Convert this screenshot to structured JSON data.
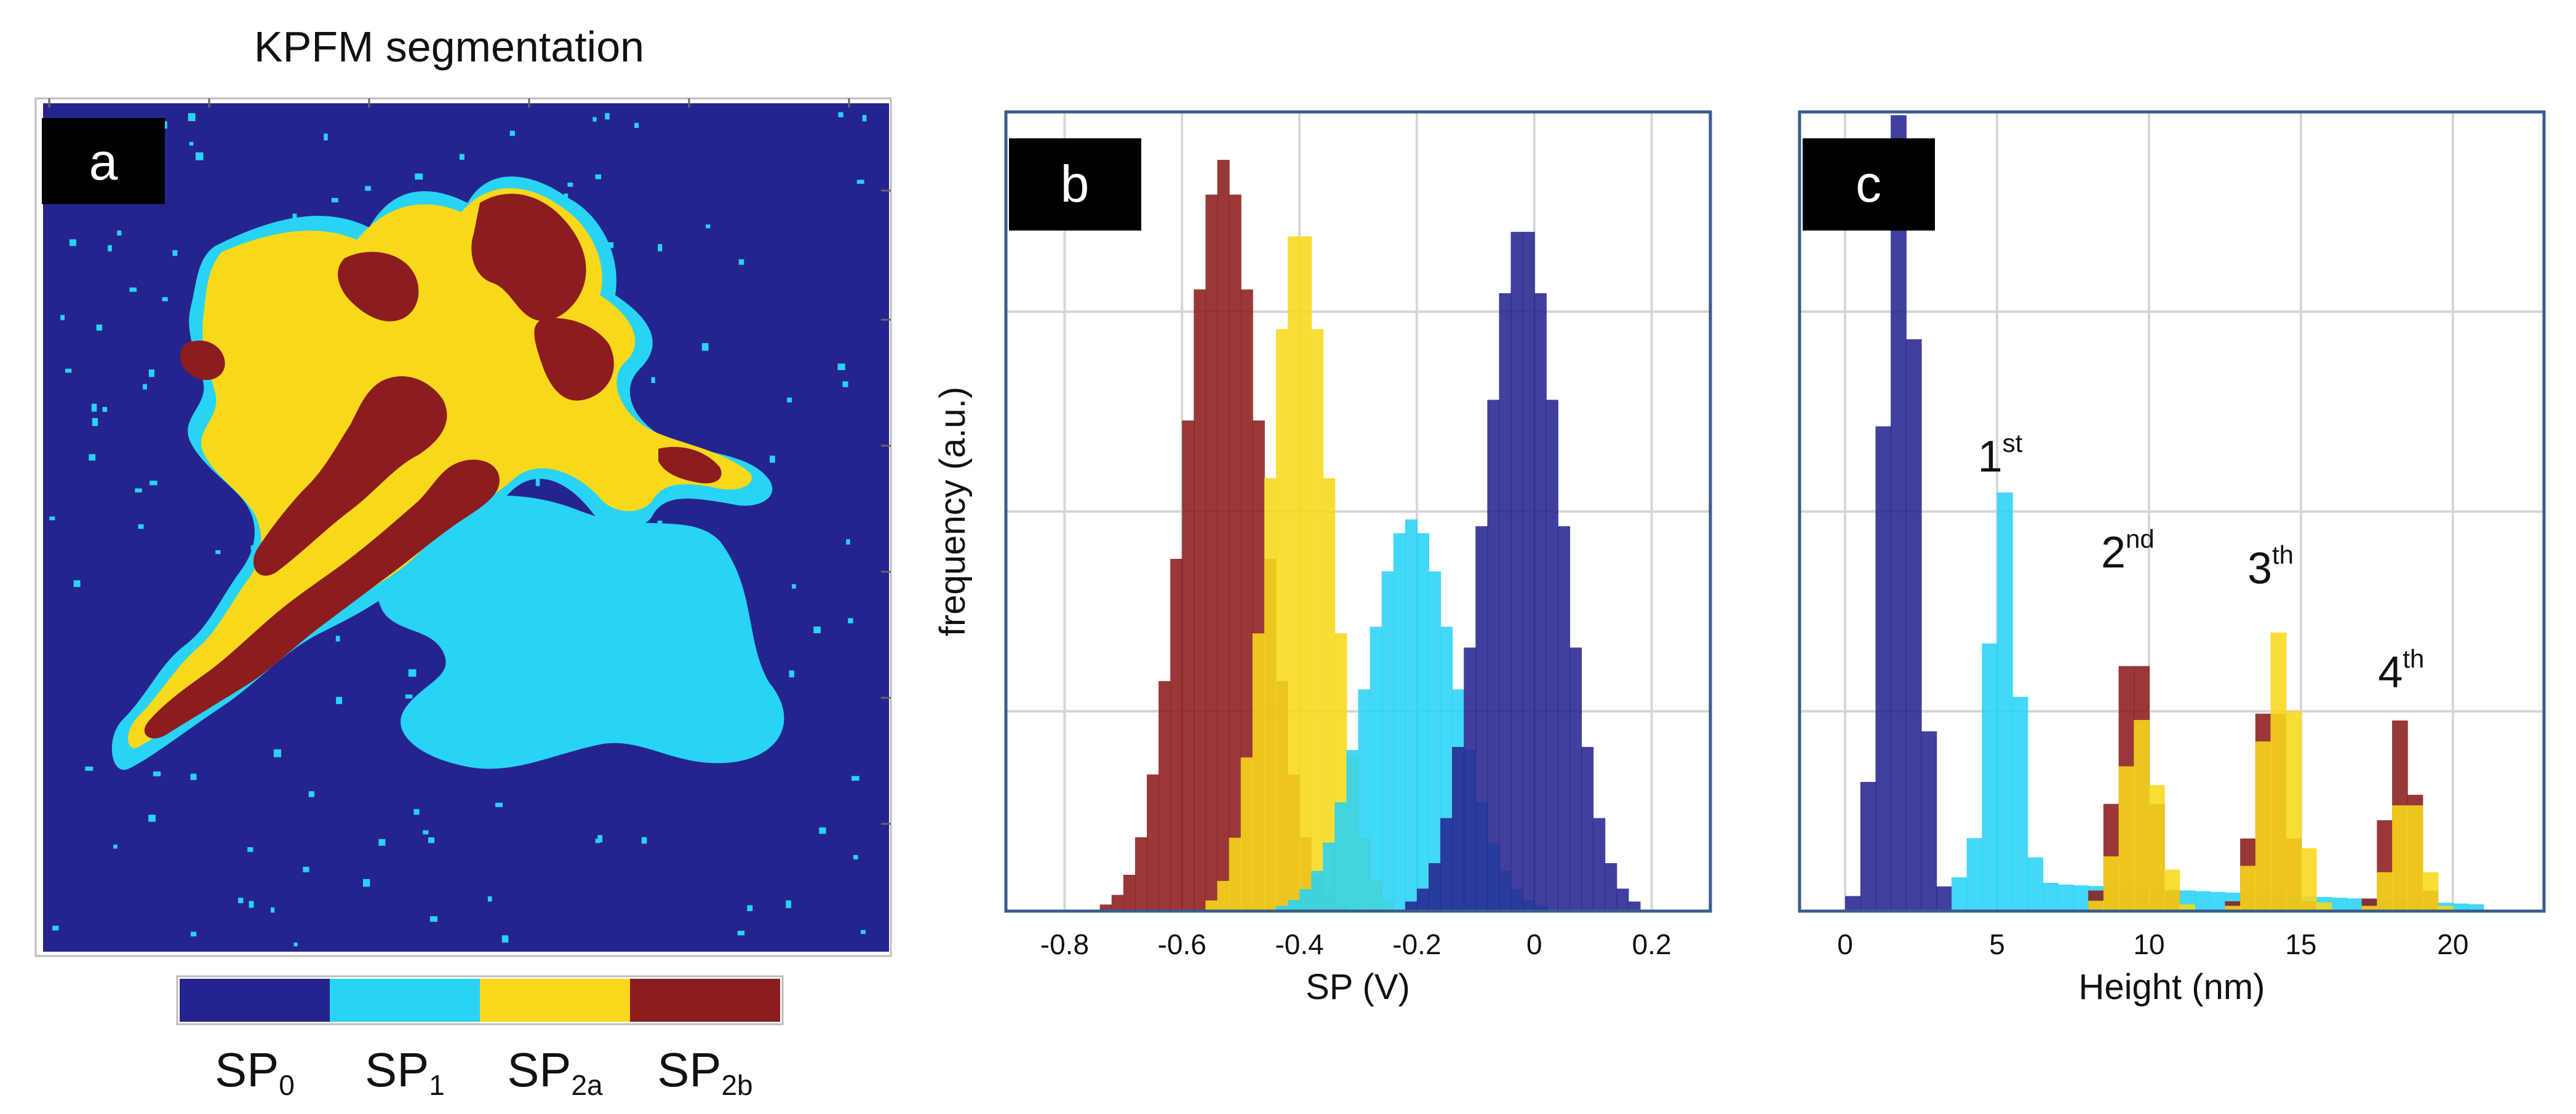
{
  "colors": {
    "SP0": "#25248f",
    "SP1": "#29d3f5",
    "SP2a": "#f7d81b",
    "SP2b": "#8c1c1e",
    "frame": "#3a5b8c",
    "grid": "#d6d6d6",
    "label_box": "#000000"
  },
  "panel_a": {
    "title": "KPFM segmentation",
    "label": "a",
    "colorbar": [
      {
        "base": "SP",
        "sub": "0",
        "color": "#25248f"
      },
      {
        "base": "SP",
        "sub": "1",
        "color": "#29d3f5"
      },
      {
        "base": "SP",
        "sub": "2a",
        "color": "#f7d81b"
      },
      {
        "base": "SP",
        "sub": "2b",
        "color": "#8c1c1e"
      }
    ]
  },
  "chart_data": [
    {
      "type": "bar",
      "panel_label": "b",
      "title": "",
      "xlabel": "SP (V)",
      "ylabel": "frequency (a.u.)",
      "xlim": [
        -0.9,
        0.3
      ],
      "ylim": [
        0,
        1.0
      ],
      "xticks": [
        -0.8,
        -0.6,
        -0.4,
        -0.2,
        0,
        0.2
      ],
      "xtick_labels": [
        "-0.8",
        "-0.6",
        "-0.4",
        "-0.2",
        "0",
        "0.2"
      ],
      "grid": true,
      "series": [
        {
          "name": "SP2b",
          "color": "#8c1c1e",
          "mean": -0.53,
          "sd": 0.065,
          "peak": 0.94
        },
        {
          "name": "SP2a",
          "color": "#f7d81b",
          "mean": -0.4,
          "sd": 0.052,
          "peak": 0.86
        },
        {
          "name": "SP1",
          "color": "#29d3f5",
          "mean": -0.21,
          "sd": 0.075,
          "peak": 0.49
        },
        {
          "name": "SP0",
          "color": "#25248f",
          "mean": -0.02,
          "sd": 0.065,
          "peak": 0.86
        }
      ]
    },
    {
      "type": "bar",
      "panel_label": "c",
      "title": "",
      "xlabel": "Height (nm)",
      "ylabel": "",
      "xlim": [
        -1.5,
        23
      ],
      "ylim": [
        0,
        1.0
      ],
      "xticks": [
        0,
        5,
        10,
        15,
        20
      ],
      "xtick_labels": [
        "0",
        "5",
        "10",
        "15",
        "20"
      ],
      "grid": true,
      "peak_labels": [
        {
          "base": "1",
          "sup": "st",
          "x": 5.1,
          "y": 0.55
        },
        {
          "base": "2",
          "sup": "nd",
          "x": 9.3,
          "y": 0.43
        },
        {
          "base": "3",
          "sup": "th",
          "x": 14.0,
          "y": 0.41
        },
        {
          "base": "4",
          "sup": "th",
          "x": 18.3,
          "y": 0.28
        }
      ],
      "series": [
        {
          "name": "SP0",
          "color": "#25248f",
          "peaks": [
            {
              "mean": 1.8,
              "sd": 0.55,
              "h": 1.0
            }
          ]
        },
        {
          "name": "SP1",
          "color": "#29d3f5",
          "base": 0.04,
          "peaks": [
            {
              "mean": 5.2,
              "sd": 0.45,
              "h": 0.49
            }
          ]
        },
        {
          "name": "SP2b",
          "color": "#8c1c1e",
          "peaks": [
            {
              "mean": 9.5,
              "sd": 0.55,
              "h": 0.34
            },
            {
              "mean": 14.0,
              "sd": 0.5,
              "h": 0.28
            },
            {
              "mean": 18.3,
              "sd": 0.45,
              "h": 0.24
            }
          ]
        },
        {
          "name": "SP2a",
          "color": "#f7d81b",
          "peaks": [
            {
              "mean": 9.7,
              "sd": 0.6,
              "h": 0.24
            },
            {
              "mean": 14.3,
              "sd": 0.55,
              "h": 0.35
            },
            {
              "mean": 18.5,
              "sd": 0.5,
              "h": 0.15
            }
          ]
        }
      ]
    }
  ]
}
